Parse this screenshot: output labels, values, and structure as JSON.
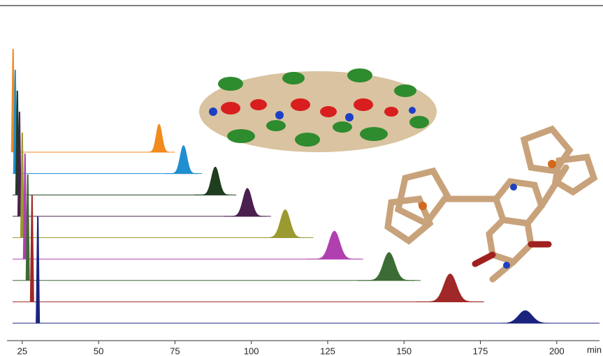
{
  "chart_data": {
    "type": "chromatogram",
    "x_unit": "min",
    "xlim": [
      20,
      214
    ],
    "xticks": [
      25,
      50,
      75,
      100,
      125,
      150,
      175,
      200
    ],
    "series": [
      {
        "color": "#f28a1e",
        "peaks": [
          22.0,
          69.8
        ],
        "end": 74.5
      },
      {
        "color": "#1f8fcf",
        "peaks": [
          22.7,
          77.8
        ],
        "end": 82.5
      },
      {
        "color": "#1f3d1f",
        "peaks": [
          23.4,
          88.2
        ],
        "end": 92.8
      },
      {
        "color": "#4a2050",
        "peaks": [
          24.1,
          98.7
        ],
        "end": 105.0
      },
      {
        "color": "#9a9a30",
        "peaks": [
          25.0,
          111.1
        ],
        "end": 120.3
      },
      {
        "color": "#b040b0",
        "peaks": [
          25.9,
          127.2
        ],
        "end": 135.9
      },
      {
        "color": "#3d6b35",
        "peaks": [
          26.8,
          145.1
        ],
        "end": 153.6
      },
      {
        "color": "#a02828",
        "peaks": [
          28.2,
          165.1
        ],
        "end": 175.4
      },
      {
        "color": "#1a237e",
        "peaks": [
          30.1,
          189.7
        ],
        "end": 214.0
      }
    ]
  }
}
